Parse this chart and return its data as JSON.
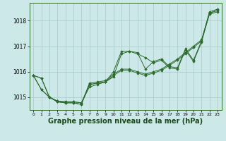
{
  "background_color": "#cce8e8",
  "grid_color": "#b0c8c8",
  "line_color": "#2d6a2d",
  "marker_color": "#2d6a2d",
  "xlabel": "Graphe pression niveau de la mer (hPa)",
  "xlabel_fontsize": 7,
  "xlim": [
    -0.5,
    23.5
  ],
  "ylim": [
    1014.5,
    1018.7
  ],
  "yticks": [
    1015,
    1016,
    1017,
    1018
  ],
  "xticks": [
    0,
    1,
    2,
    3,
    4,
    5,
    6,
    7,
    8,
    9,
    10,
    11,
    12,
    13,
    14,
    15,
    16,
    17,
    18,
    19,
    20,
    21,
    22,
    23
  ],
  "s1": [
    1015.85,
    1015.75,
    1015.0,
    1014.85,
    1014.82,
    1014.82,
    1014.78,
    1015.4,
    1015.5,
    1015.6,
    1016.0,
    1016.8,
    1016.8,
    1016.75,
    1016.1,
    1016.4,
    1016.5,
    1016.2,
    1016.15,
    1016.9,
    1016.45,
    1017.2,
    1018.35,
    1018.45
  ],
  "s2": [
    1015.85,
    1015.75,
    1015.0,
    1014.85,
    1014.82,
    1014.82,
    1014.78,
    1015.5,
    1015.55,
    1015.6,
    1015.8,
    1016.7,
    1016.8,
    1016.7,
    1016.55,
    1016.35,
    1016.45,
    1016.15,
    1016.1,
    1016.85,
    1016.4,
    1017.15,
    1018.3,
    1018.4
  ],
  "s3": [
    1015.85,
    1015.3,
    1015.0,
    1014.82,
    1014.78,
    1014.78,
    1014.72,
    1015.55,
    1015.6,
    1015.65,
    1015.9,
    1016.1,
    1016.1,
    1016.0,
    1015.9,
    1016.0,
    1016.1,
    1016.3,
    1016.5,
    1016.75,
    1017.0,
    1017.25,
    1018.3,
    1018.4
  ],
  "s4": [
    1015.85,
    1015.3,
    1015.0,
    1014.82,
    1014.78,
    1014.78,
    1014.72,
    1015.5,
    1015.55,
    1015.6,
    1015.85,
    1016.05,
    1016.05,
    1015.95,
    1015.85,
    1015.95,
    1016.05,
    1016.25,
    1016.45,
    1016.7,
    1016.95,
    1017.2,
    1018.25,
    1018.35
  ]
}
